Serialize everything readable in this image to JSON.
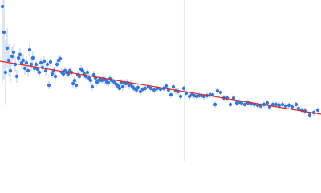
{
  "chart_data": {
    "type": "scatter",
    "xlim": [
      0,
      400
    ],
    "ylim": [
      0,
      200
    ],
    "vline": 230,
    "vline_color": "#c9d6e8",
    "x": [
      3,
      5,
      7,
      9,
      11,
      13,
      15,
      17,
      19,
      21,
      23,
      25,
      27,
      29,
      31,
      33,
      35,
      37,
      39,
      41,
      43,
      45,
      47,
      49,
      51,
      53,
      55,
      57,
      59,
      61,
      63,
      65,
      67,
      69,
      71,
      73,
      75,
      77,
      79,
      81,
      83,
      85,
      87,
      89,
      91,
      93,
      95,
      97,
      99,
      101,
      103,
      105,
      107,
      109,
      111,
      113,
      115,
      117,
      119,
      121,
      123,
      125,
      127,
      129,
      131,
      133,
      135,
      137,
      139,
      141,
      143,
      145,
      147,
      149,
      151,
      153,
      155,
      157,
      159,
      161,
      163,
      165,
      167,
      170,
      172,
      175,
      178,
      181,
      185,
      188,
      192,
      196,
      200,
      204,
      207,
      210,
      213,
      216,
      219,
      222,
      225,
      229,
      232,
      236,
      239,
      242,
      245,
      248,
      251,
      254,
      258,
      262,
      265,
      268,
      271,
      275,
      279,
      283,
      287,
      291,
      295,
      298,
      301,
      305,
      309,
      313,
      317,
      321,
      325,
      329,
      333,
      336,
      340,
      344,
      348,
      352,
      356,
      360,
      364,
      369,
      372,
      376,
      380,
      386,
      391,
      396
    ],
    "series": [
      {
        "color": "#3a78d6",
        "error_color": "#c5d4ea",
        "values": [
          192,
          160,
          110,
          140,
          125,
          112,
          130,
          135,
          120,
          105,
          128,
          132,
          122,
          125,
          115,
          122,
          112,
          138,
          120,
          128,
          115,
          120,
          114,
          110,
          122,
          116,
          124,
          112,
          120,
          94,
          123,
          108,
          112,
          105,
          120,
          125,
          127,
          110,
          108,
          112,
          110,
          108,
          112,
          110,
          96,
          100,
          94,
          107,
          105,
          114,
          112,
          108,
          105,
          110,
          103,
          100,
          92,
          107,
          103,
          98,
          100,
          102,
          100,
          102,
          101,
          98,
          97,
          102,
          100,
          99,
          97,
          95,
          93,
          90,
          97,
          92,
          97,
          96,
          97,
          94,
          95,
          92,
          90,
          88,
          91,
          86,
          89,
          90,
          92,
          90,
          88,
          90,
          89,
          90,
          93,
          88,
          82,
          92,
          87,
          86,
          80,
          90,
          84,
          80,
          82,
          81,
          80,
          81,
          81,
          80,
          81,
          82,
          82,
          70,
          87,
          85,
          78,
          78,
          70,
          78,
          72,
          73,
          72,
          70,
          72,
          71,
          70,
          69,
          68,
          70,
          72,
          67,
          70,
          70,
          69,
          70,
          68,
          69,
          67,
          70,
          65,
          63,
          62,
          57,
          60,
          63
        ],
        "errors": [
          95,
          60,
          40,
          25,
          20,
          14,
          12,
          10,
          10,
          8,
          8,
          8,
          8,
          8,
          8,
          8,
          8,
          8,
          8,
          8,
          6,
          6,
          6,
          6,
          6,
          6,
          6,
          6,
          6,
          5,
          5,
          5,
          5,
          5,
          5,
          5,
          5,
          5,
          5,
          5,
          5,
          5,
          5,
          5,
          5,
          5,
          5,
          5,
          5,
          5,
          5,
          5,
          5,
          5,
          5,
          5,
          5,
          5,
          5,
          5,
          5,
          5,
          5,
          5,
          5,
          5,
          5,
          5,
          5,
          5,
          5,
          5,
          5,
          5,
          5,
          5,
          5,
          5,
          5,
          5,
          5,
          5,
          5,
          4,
          4,
          4,
          4,
          4,
          4,
          4,
          4,
          4,
          4,
          4,
          4,
          4,
          4,
          4,
          4,
          4,
          4,
          4,
          4,
          4,
          4,
          4,
          4,
          4,
          4,
          4,
          4,
          4,
          4,
          4,
          4,
          4,
          4,
          4,
          4,
          4,
          4,
          4,
          4,
          4,
          4,
          4,
          4,
          4,
          4,
          4,
          4,
          4,
          4,
          4,
          4,
          4,
          4,
          4,
          4,
          4,
          4,
          4,
          4,
          4,
          4,
          4
        ]
      }
    ],
    "fit": {
      "x": [
        0,
        400
      ],
      "y": [
        124,
        58
      ],
      "color": "#d82828"
    }
  }
}
